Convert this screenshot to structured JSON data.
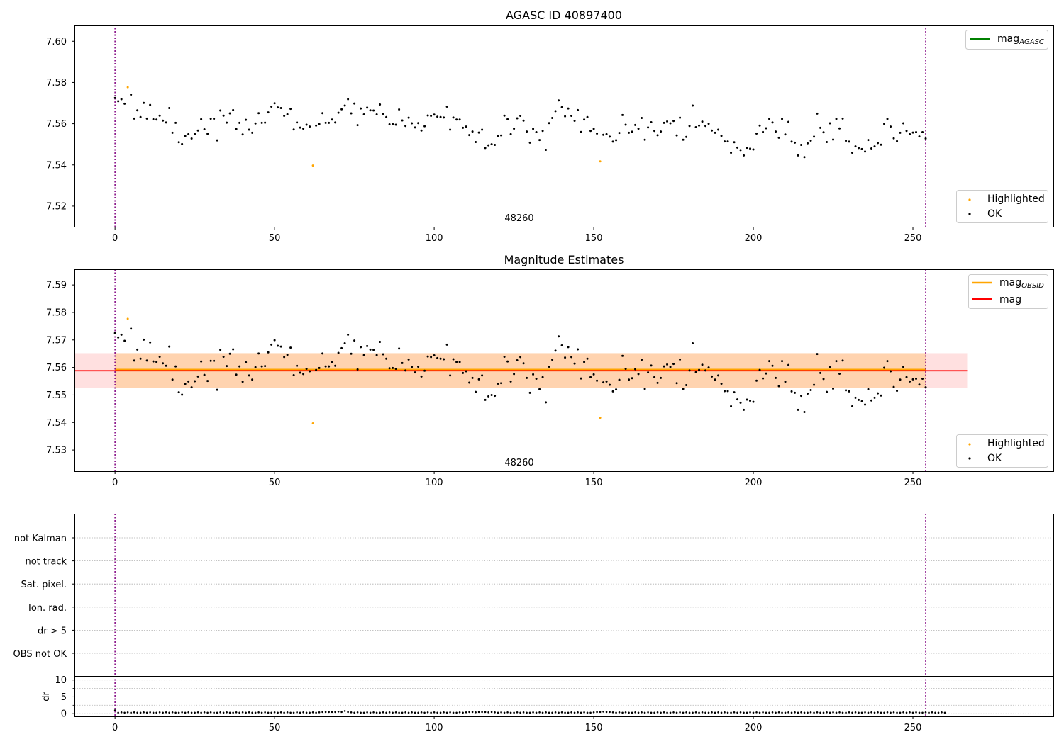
{
  "chart_data": [
    {
      "type": "scatter",
      "title": "AGASC ID 40897400",
      "xlim": [
        -12.7,
        294
      ],
      "ylim": [
        7.51,
        7.608
      ],
      "xticks": [
        0,
        50,
        100,
        150,
        200,
        250
      ],
      "yticks": [
        7.52,
        7.54,
        7.56,
        7.58,
        7.6
      ],
      "annotation": "48260",
      "vlines": [
        0,
        254
      ],
      "legend_lines": [
        {
          "name": "mag",
          "subscript": "AGASC",
          "color": "#008000"
        }
      ],
      "legend_points": [
        {
          "name": "Highlighted",
          "color": "#ffa500"
        },
        {
          "name": "OK",
          "color": "#000000"
        }
      ],
      "series": [
        {
          "name": "OK",
          "color": "#000000",
          "ref": "points_ok"
        },
        {
          "name": "Highlighted",
          "color": "#ffa500",
          "ref": "points_highlighted"
        }
      ]
    },
    {
      "type": "scatter",
      "title": "Magnitude Estimates",
      "xlim": [
        -12.7,
        294
      ],
      "ylim": [
        7.5223,
        7.5957
      ],
      "xticks": [
        0,
        50,
        100,
        150,
        200,
        250
      ],
      "yticks": [
        7.53,
        7.54,
        7.55,
        7.56,
        7.57,
        7.58,
        7.59
      ],
      "annotation": "48260",
      "vlines": [
        0,
        254
      ],
      "mag_obsid": {
        "value": 7.5592,
        "band": [
          7.5525,
          7.5652
        ],
        "x_range": [
          0,
          254
        ],
        "color": "#ffa500"
      },
      "mag": {
        "value": 7.5588,
        "band": [
          7.5525,
          7.5652
        ],
        "x_range": [
          -12.7,
          267
        ],
        "color": "#ff0000"
      },
      "legend_lines": [
        {
          "name": "mag",
          "subscript": "OBSID",
          "color": "#ffa500"
        },
        {
          "name": "mag",
          "subscript": "",
          "color": "#ff0000"
        }
      ],
      "legend_points": [
        {
          "name": "Highlighted",
          "color": "#ffa500"
        },
        {
          "name": "OK",
          "color": "#000000"
        }
      ],
      "series": [
        {
          "name": "OK",
          "color": "#000000",
          "ref": "points_ok"
        },
        {
          "name": "Highlighted",
          "color": "#ffa500",
          "ref": "points_highlighted"
        }
      ]
    },
    {
      "type": "scatter",
      "xlim": [
        -12.7,
        294
      ],
      "categories": [
        "not Kalman",
        "not track",
        "Sat. pixel.",
        "Ion. rad.",
        "dr > 5",
        "OBS not OK"
      ],
      "vlines": [
        0,
        254
      ]
    },
    {
      "type": "scatter",
      "ylabel": "dr",
      "xlim": [
        -12.7,
        294
      ],
      "ylim": [
        -0.8,
        11.2
      ],
      "yticks": [
        0,
        5,
        10
      ],
      "xticks": [
        0,
        50,
        100,
        150,
        200,
        250
      ],
      "vlines": [
        0,
        254
      ],
      "dr_first": 1.0,
      "dr_values": [
        0.3,
        0.4,
        0.3,
        0.4,
        0.3,
        0.4,
        0.3,
        0.3,
        0.4,
        0.3,
        0.4,
        0.3,
        0.3,
        0.4,
        0.3,
        0.4,
        0.3,
        0.4,
        0.3,
        0.3,
        0.4,
        0.3,
        0.4,
        0.3,
        0.3,
        0.4,
        0.3,
        0.4,
        0.3,
        0.4,
        0.3,
        0.3,
        0.4,
        0.3,
        0.4,
        0.3,
        0.3,
        0.4,
        0.3,
        0.4,
        0.3,
        0.4,
        0.3,
        0.3,
        0.4,
        0.3,
        0.4,
        0.3,
        0.3,
        0.4,
        0.3,
        0.4,
        0.3,
        0.4,
        0.3,
        0.3,
        0.4,
        0.3,
        0.4,
        0.3,
        0.3,
        0.4,
        0.3,
        0.4,
        0.5,
        0.5,
        0.5,
        0.5,
        0.5,
        0.6,
        0.5,
        0.8,
        0.5,
        0.4,
        0.3,
        0.4,
        0.3,
        0.3,
        0.4,
        0.3,
        0.4,
        0.3,
        0.3,
        0.4,
        0.3,
        0.4,
        0.3,
        0.4,
        0.3,
        0.3,
        0.4,
        0.3,
        0.4,
        0.3,
        0.3,
        0.4,
        0.3,
        0.4,
        0.3,
        0.4,
        0.3,
        0.3,
        0.4,
        0.3,
        0.4,
        0.3,
        0.3,
        0.4,
        0.3,
        0.4,
        0.5,
        0.5,
        0.4,
        0.5,
        0.5,
        0.5,
        0.4,
        0.5,
        0.4,
        0.3,
        0.4,
        0.3,
        0.4,
        0.3,
        0.3,
        0.4,
        0.3,
        0.4,
        0.3,
        0.3,
        0.4,
        0.3,
        0.4,
        0.3,
        0.4,
        0.3,
        0.3,
        0.4,
        0.3,
        0.4,
        0.3,
        0.3,
        0.4,
        0.3,
        0.4,
        0.3,
        0.4,
        0.3,
        0.3,
        0.4,
        0.5,
        0.5,
        0.6,
        0.5,
        0.5,
        0.4,
        0.3,
        0.4,
        0.3,
        0.4,
        0.3,
        0.3,
        0.4,
        0.3,
        0.4,
        0.3,
        0.4,
        0.3,
        0.3,
        0.4,
        0.3,
        0.4,
        0.3,
        0.3,
        0.4,
        0.3,
        0.4,
        0.3,
        0.4,
        0.3,
        0.3,
        0.4,
        0.3,
        0.4,
        0.3,
        0.3,
        0.4,
        0.3,
        0.4,
        0.3,
        0.4,
        0.3,
        0.3,
        0.4,
        0.3,
        0.4,
        0.3,
        0.3,
        0.4,
        0.3,
        0.4,
        0.3,
        0.4,
        0.3,
        0.3,
        0.4,
        0.3,
        0.4,
        0.3,
        0.3,
        0.4,
        0.3,
        0.4,
        0.3,
        0.4,
        0.3,
        0.3,
        0.4,
        0.3,
        0.4,
        0.3,
        0.3,
        0.4,
        0.3,
        0.4,
        0.3,
        0.4,
        0.3,
        0.3,
        0.4,
        0.3,
        0.4,
        0.3,
        0.3,
        0.4,
        0.3,
        0.4,
        0.3,
        0.4,
        0.3,
        0.3,
        0.4,
        0.3,
        0.4,
        0.3,
        0.3,
        0.4,
        0.3,
        0.4,
        0.3,
        0.4,
        0.3,
        0.3,
        0.4,
        0.3,
        0.4,
        0.3,
        0.3,
        0.4,
        0.3
      ]
    }
  ],
  "points_highlighted": [
    [
      4,
      7.5777
    ],
    [
      62,
      7.5397
    ],
    [
      152,
      7.5417
    ]
  ],
  "points_ok": [
    [
      0,
      7.5725
    ],
    [
      1,
      7.5709
    ],
    [
      2,
      7.5719
    ],
    [
      3,
      7.5697
    ],
    [
      5,
      7.5741
    ],
    [
      6,
      7.5625
    ],
    [
      7,
      7.5665
    ],
    [
      8,
      7.5632
    ],
    [
      9,
      7.5701
    ],
    [
      10,
      7.5625
    ],
    [
      11,
      7.5691
    ],
    [
      12,
      7.5622
    ],
    [
      13,
      7.562
    ],
    [
      14,
      7.5639
    ],
    [
      15,
      7.5615
    ],
    [
      16,
      7.5606
    ],
    [
      17,
      7.5676
    ],
    [
      18,
      7.5556
    ],
    [
      19,
      7.5604
    ],
    [
      20,
      7.551
    ],
    [
      21,
      7.5501
    ],
    [
      22,
      7.554
    ],
    [
      23,
      7.5549
    ],
    [
      24,
      7.5528
    ],
    [
      25,
      7.555
    ],
    [
      26,
      7.5567
    ],
    [
      27,
      7.5622
    ],
    [
      28,
      7.5573
    ],
    [
      29,
      7.5551
    ],
    [
      30,
      7.5624
    ],
    [
      31,
      7.5624
    ],
    [
      32,
      7.5519
    ],
    [
      33,
      7.5664
    ],
    [
      34,
      7.5639
    ],
    [
      35,
      7.5605
    ],
    [
      36,
      7.565
    ],
    [
      37,
      7.5666
    ],
    [
      38,
      7.5574
    ],
    [
      39,
      7.5604
    ],
    [
      40,
      7.5548
    ],
    [
      41,
      7.5619
    ],
    [
      42,
      7.5571
    ],
    [
      43,
      7.5556
    ],
    [
      44,
      7.5601
    ],
    [
      45,
      7.5651
    ],
    [
      46,
      7.5604
    ],
    [
      47,
      7.5605
    ],
    [
      48,
      7.5655
    ],
    [
      49,
      7.5683
    ],
    [
      50,
      7.5699
    ],
    [
      51,
      7.5679
    ],
    [
      52,
      7.5676
    ],
    [
      53,
      7.5638
    ],
    [
      54,
      7.5646
    ],
    [
      55,
      7.5672
    ],
    [
      56,
      7.5572
    ],
    [
      57,
      7.5606
    ],
    [
      58,
      7.5581
    ],
    [
      59,
      7.5576
    ],
    [
      60,
      7.5595
    ],
    [
      61,
      7.5586
    ],
    [
      63,
      7.5591
    ],
    [
      64,
      7.5598
    ],
    [
      65,
      7.5651
    ],
    [
      66,
      7.5604
    ],
    [
      67,
      7.5604
    ],
    [
      68,
      7.562
    ],
    [
      69,
      7.5606
    ],
    [
      70,
      7.5653
    ],
    [
      71,
      7.567
    ],
    [
      72,
      7.5688
    ],
    [
      73,
      7.5719
    ],
    [
      74,
      7.565
    ],
    [
      75,
      7.5698
    ],
    [
      76,
      7.5593
    ],
    [
      77,
      7.5674
    ],
    [
      78,
      7.5645
    ],
    [
      79,
      7.5678
    ],
    [
      80,
      7.5665
    ],
    [
      81,
      7.5664
    ],
    [
      82,
      7.5645
    ],
    [
      83,
      7.5693
    ],
    [
      84,
      7.5648
    ],
    [
      85,
      7.5632
    ],
    [
      86,
      7.5597
    ],
    [
      87,
      7.5598
    ],
    [
      88,
      7.5595
    ],
    [
      89,
      7.5669
    ],
    [
      90,
      7.5616
    ],
    [
      91,
      7.5589
    ],
    [
      92,
      7.5629
    ],
    [
      93,
      7.5602
    ],
    [
      94,
      7.5582
    ],
    [
      95,
      7.5603
    ],
    [
      96,
      7.5567
    ],
    [
      97,
      7.5588
    ],
    [
      98,
      7.564
    ],
    [
      99,
      7.5638
    ],
    [
      100,
      7.5644
    ],
    [
      101,
      7.5634
    ],
    [
      102,
      7.5632
    ],
    [
      103,
      7.563
    ],
    [
      104,
      7.5683
    ],
    [
      105,
      7.5571
    ],
    [
      106,
      7.563
    ],
    [
      107,
      7.562
    ],
    [
      108,
      7.562
    ],
    [
      109,
      7.558
    ],
    [
      110,
      7.5586
    ],
    [
      111,
      7.5545
    ],
    [
      112,
      7.5562
    ],
    [
      113,
      7.5511
    ],
    [
      114,
      7.5557
    ],
    [
      115,
      7.5571
    ],
    [
      116,
      7.5482
    ],
    [
      117,
      7.5495
    ],
    [
      118,
      7.55
    ],
    [
      119,
      7.5497
    ],
    [
      120,
      7.5541
    ],
    [
      121,
      7.5543
    ],
    [
      122,
      7.5639
    ],
    [
      123,
      7.5622
    ],
    [
      124,
      7.5549
    ],
    [
      125,
      7.5576
    ],
    [
      126,
      7.5626
    ],
    [
      127,
      7.5638
    ],
    [
      128,
      7.5615
    ],
    [
      129,
      7.5562
    ],
    [
      130,
      7.5508
    ],
    [
      131,
      7.5575
    ],
    [
      132,
      7.5559
    ],
    [
      133,
      7.5521
    ],
    [
      134,
      7.5565
    ],
    [
      135,
      7.5473
    ],
    [
      136,
      7.5603
    ],
    [
      137,
      7.5628
    ],
    [
      138,
      7.5661
    ],
    [
      139,
      7.5713
    ],
    [
      140,
      7.568
    ],
    [
      141,
      7.5636
    ],
    [
      142,
      7.5674
    ],
    [
      143,
      7.5638
    ],
    [
      144,
      7.5614
    ],
    [
      145,
      7.5666
    ],
    [
      146,
      7.556
    ],
    [
      147,
      7.562
    ],
    [
      148,
      7.5632
    ],
    [
      149,
      7.5565
    ],
    [
      150,
      7.5575
    ],
    [
      151,
      7.5552
    ],
    [
      153,
      7.5546
    ],
    [
      154,
      7.5549
    ],
    [
      155,
      7.5537
    ],
    [
      156,
      7.5513
    ],
    [
      157,
      7.552
    ],
    [
      158,
      7.5555
    ],
    [
      159,
      7.5642
    ],
    [
      160,
      7.5595
    ],
    [
      161,
      7.5556
    ],
    [
      162,
      7.5561
    ],
    [
      163,
      7.5594
    ],
    [
      164,
      7.5576
    ],
    [
      165,
      7.5628
    ],
    [
      166,
      7.5522
    ],
    [
      167,
      7.5582
    ],
    [
      168,
      7.5607
    ],
    [
      169,
      7.5565
    ],
    [
      170,
      7.5544
    ],
    [
      171,
      7.5562
    ],
    [
      172,
      7.5604
    ],
    [
      173,
      7.5611
    ],
    [
      174,
      7.5602
    ],
    [
      175,
      7.5613
    ],
    [
      176,
      7.5543
    ],
    [
      177,
      7.5629
    ],
    [
      178,
      7.5522
    ],
    [
      179,
      7.5536
    ],
    [
      180,
      7.5589
    ],
    [
      181,
      7.5688
    ],
    [
      182,
      7.5583
    ],
    [
      183,
      7.5591
    ],
    [
      184,
      7.561
    ],
    [
      185,
      7.5589
    ],
    [
      186,
      7.56
    ],
    [
      187,
      7.5567
    ],
    [
      188,
      7.5556
    ],
    [
      189,
      7.5571
    ],
    [
      190,
      7.5541
    ],
    [
      191,
      7.5514
    ],
    [
      192,
      7.5514
    ],
    [
      193,
      7.5459
    ],
    [
      194,
      7.551
    ],
    [
      195,
      7.5484
    ],
    [
      196,
      7.5472
    ],
    [
      197,
      7.5446
    ],
    [
      198,
      7.5483
    ],
    [
      199,
      7.5479
    ],
    [
      200,
      7.5475
    ],
    [
      201,
      7.5552
    ],
    [
      202,
      7.5591
    ],
    [
      203,
      7.556
    ],
    [
      204,
      7.5578
    ],
    [
      205,
      7.5623
    ],
    [
      206,
      7.5606
    ],
    [
      207,
      7.5562
    ],
    [
      208,
      7.5532
    ],
    [
      209,
      7.5623
    ],
    [
      210,
      7.5548
    ],
    [
      211,
      7.5609
    ],
    [
      212,
      7.5513
    ],
    [
      213,
      7.5508
    ],
    [
      214,
      7.5446
    ],
    [
      215,
      7.5497
    ],
    [
      216,
      7.5438
    ],
    [
      217,
      7.5505
    ],
    [
      218,
      7.5518
    ],
    [
      219,
      7.5537
    ],
    [
      220,
      7.5649
    ],
    [
      221,
      7.558
    ],
    [
      222,
      7.5558
    ],
    [
      223,
      7.5511
    ],
    [
      224,
      7.5602
    ],
    [
      225,
      7.5523
    ],
    [
      226,
      7.5623
    ],
    [
      227,
      7.5577
    ],
    [
      228,
      7.5625
    ],
    [
      229,
      7.5517
    ],
    [
      230,
      7.5513
    ],
    [
      231,
      7.5459
    ],
    [
      232,
      7.549
    ],
    [
      233,
      7.5482
    ],
    [
      234,
      7.5477
    ],
    [
      235,
      7.5465
    ],
    [
      236,
      7.5521
    ],
    [
      237,
      7.548
    ],
    [
      238,
      7.549
    ],
    [
      239,
      7.5506
    ],
    [
      240,
      7.5498
    ],
    [
      241,
      7.5599
    ],
    [
      242,
      7.5623
    ],
    [
      243,
      7.5586
    ],
    [
      244,
      7.5529
    ],
    [
      245,
      7.5515
    ],
    [
      246,
      7.5556
    ],
    [
      247,
      7.5602
    ],
    [
      248,
      7.5565
    ],
    [
      249,
      7.5549
    ],
    [
      250,
      7.5557
    ],
    [
      251,
      7.5559
    ],
    [
      252,
      7.5538
    ],
    [
      253,
      7.5559
    ],
    [
      254,
      7.5528
    ]
  ]
}
